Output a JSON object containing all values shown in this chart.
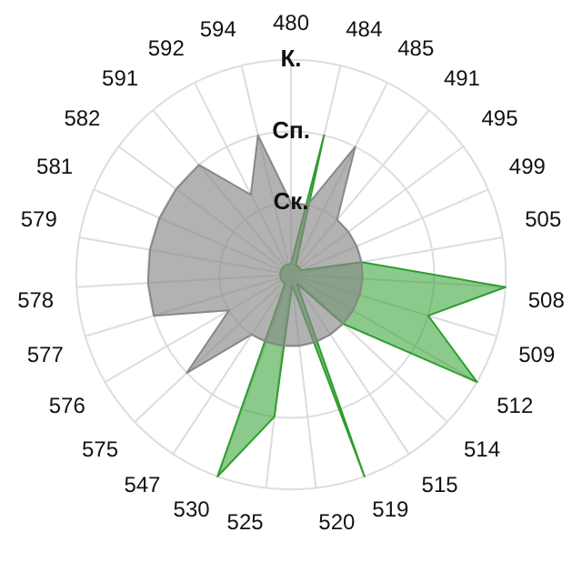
{
  "chart_data": {
    "type": "radar",
    "categories": [
      "480",
      "484",
      "485",
      "491",
      "495",
      "499",
      "505",
      "508",
      "509",
      "512",
      "514",
      "515",
      "519",
      "520",
      "525",
      "530",
      "547",
      "575",
      "576",
      "577",
      "578",
      "579",
      "581",
      "582",
      "591",
      "592",
      "594"
    ],
    "series": [
      {
        "color": "#888888",
        "values": [
          1,
          1,
          2,
          1,
          1,
          1,
          1,
          1,
          1,
          1,
          1,
          1,
          1,
          1,
          1,
          1,
          1,
          2,
          1,
          2,
          2,
          2,
          2,
          2,
          2,
          1.25,
          2
        ]
      },
      {
        "color": "#2e9e2e",
        "values": [
          0.15,
          2,
          0.15,
          0.15,
          0.15,
          0.15,
          1,
          3,
          2,
          3,
          1,
          0.15,
          3,
          0.15,
          2,
          3,
          0.15,
          0.15,
          0.15,
          0.15,
          0.15,
          0.15,
          0.15,
          0.15,
          0.15,
          0.15,
          0.15
        ]
      }
    ],
    "ylim": [
      0,
      3
    ],
    "yticks": [
      {
        "value": 1,
        "label": "Ск."
      },
      {
        "value": 2,
        "label": "Сп."
      },
      {
        "value": 3,
        "label": "К."
      }
    ],
    "grid": true,
    "legend": false,
    "marker": "none"
  }
}
